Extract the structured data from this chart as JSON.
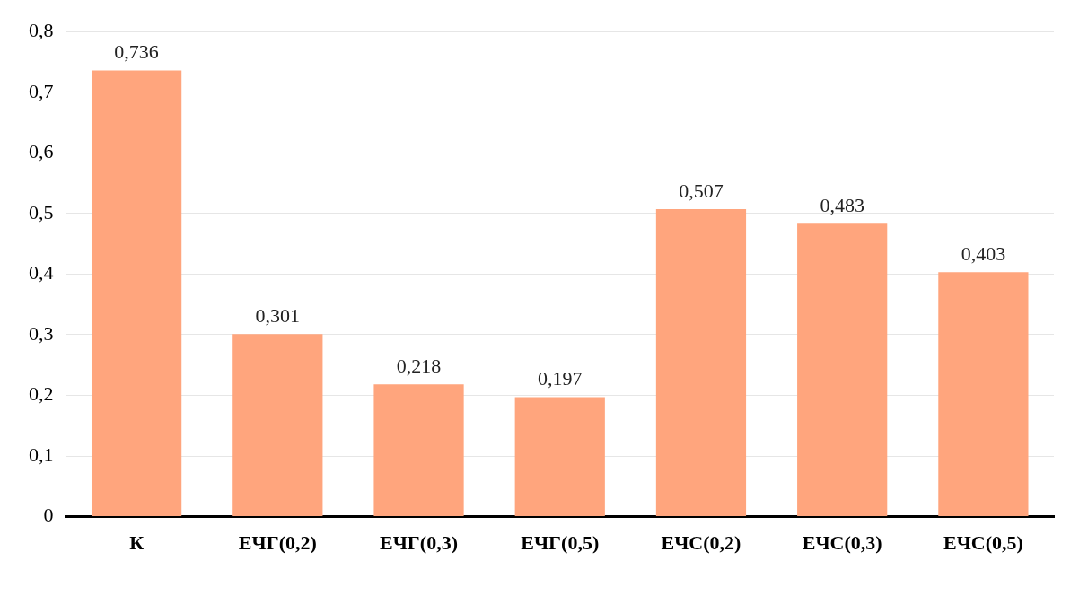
{
  "chart_data": {
    "type": "bar",
    "categories": [
      "К",
      "ЕЧГ(0,2)",
      "ЕЧГ(0,3)",
      "ЕЧГ(0,5)",
      "ЕЧС(0,2)",
      "ЕЧС(0,3)",
      "ЕЧС(0,5)"
    ],
    "values": [
      0.736,
      0.301,
      0.218,
      0.197,
      0.507,
      0.483,
      0.403
    ],
    "value_labels": [
      "0,736",
      "0,301",
      "0,218",
      "0,197",
      "0,507",
      "0,483",
      "0,403"
    ],
    "color": "#ffa57d",
    "ylim": [
      0,
      0.8
    ],
    "yticks": [
      0,
      {
        "value": 0.1,
        "label": "0,1"
      },
      {
        "value": 0.2,
        "label": "0,2"
      },
      {
        "value": 0.3,
        "label": "0,3"
      },
      {
        "value": 0.4,
        "label": "0,4"
      },
      {
        "value": 0.5,
        "label": "0,5"
      },
      {
        "value": 0.6,
        "label": "0,6"
      },
      {
        "value": 0.7,
        "label": "0,7"
      },
      {
        "value": 0.8,
        "label": "0,8"
      }
    ],
    "grid": "y",
    "legend": false
  }
}
